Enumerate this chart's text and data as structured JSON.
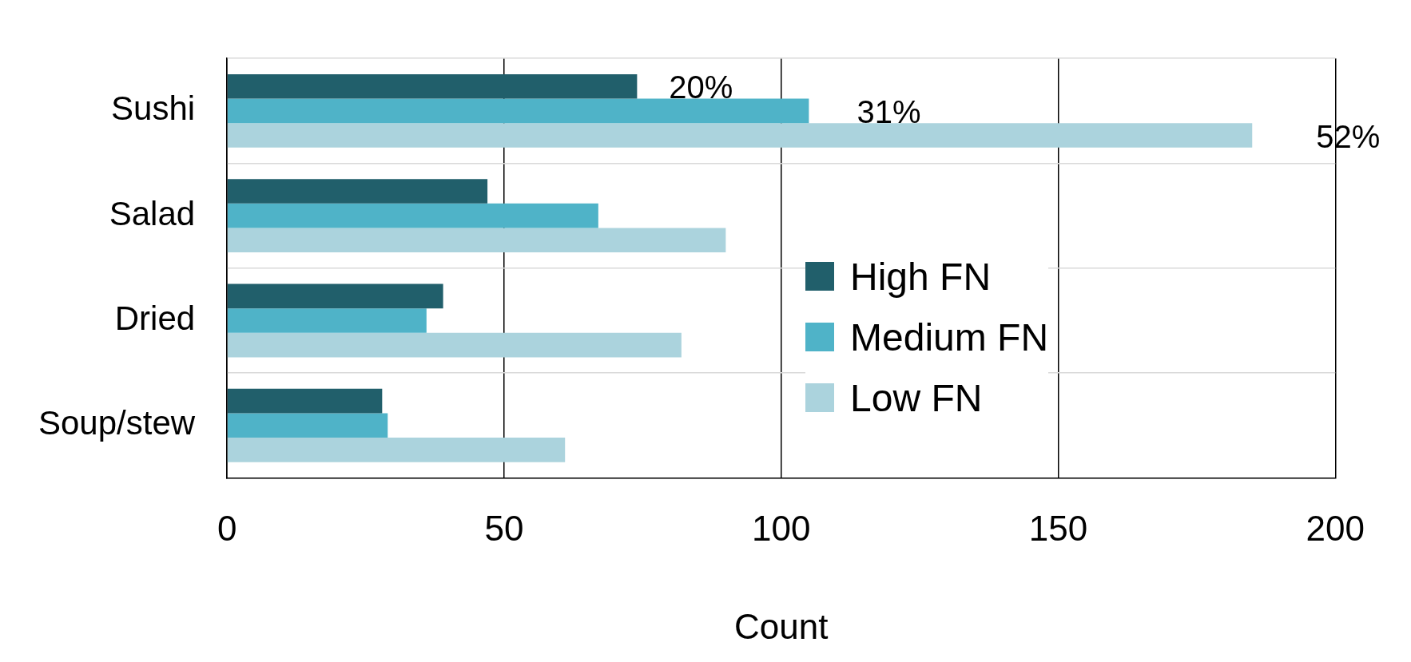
{
  "chart_data": {
    "type": "bar",
    "orientation": "horizontal",
    "xlabel": "Count",
    "categories": [
      "Sushi",
      "Salad",
      "Dried",
      "Soup/stew"
    ],
    "series": [
      {
        "name": "High FN",
        "color": "#215f6b",
        "values": [
          74,
          47,
          39,
          28
        ]
      },
      {
        "name": "Medium FN",
        "color": "#4fb3c8",
        "values": [
          105,
          67,
          36,
          29
        ]
      },
      {
        "name": "Low FN",
        "color": "#abd3dd",
        "values": [
          185,
          90,
          82,
          61
        ]
      }
    ],
    "annotations": [
      "20%",
      "31%",
      "52%"
    ],
    "xlim": [
      0,
      200
    ],
    "xticks": [
      0,
      50,
      100,
      150,
      200
    ],
    "grid": true,
    "legend": "right"
  }
}
